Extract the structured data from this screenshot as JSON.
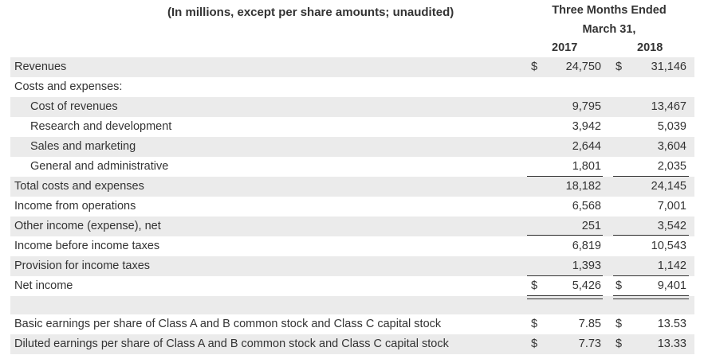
{
  "header": {
    "title": "(In millions, except per share amounts; unaudited)",
    "period_line1": "Three Months Ended",
    "period_line2": "March 31,",
    "year1": "2017",
    "year2": "2018"
  },
  "rows": [
    {
      "label": "Revenues",
      "indent": false,
      "cur1": "$",
      "v1": "24,750",
      "cur2": "$",
      "v2": "31,146"
    },
    {
      "label": "Costs and expenses:",
      "indent": false,
      "cur1": "",
      "v1": "",
      "cur2": "",
      "v2": ""
    },
    {
      "label": "Cost of revenues",
      "indent": true,
      "cur1": "",
      "v1": "9,795",
      "cur2": "",
      "v2": "13,467"
    },
    {
      "label": "Research and development",
      "indent": true,
      "cur1": "",
      "v1": "3,942",
      "cur2": "",
      "v2": "5,039"
    },
    {
      "label": "Sales and marketing",
      "indent": true,
      "cur1": "",
      "v1": "2,644",
      "cur2": "",
      "v2": "3,604"
    },
    {
      "label": "General and administrative",
      "indent": true,
      "cur1": "",
      "v1": "1,801",
      "cur2": "",
      "v2": "2,035"
    },
    {
      "label": "Total costs and expenses",
      "indent": false,
      "cur1": "",
      "v1": "18,182",
      "cur2": "",
      "v2": "24,145"
    },
    {
      "label": "Income from operations",
      "indent": false,
      "cur1": "",
      "v1": "6,568",
      "cur2": "",
      "v2": "7,001"
    },
    {
      "label": "Other income (expense), net",
      "indent": false,
      "cur1": "",
      "v1": "251",
      "cur2": "",
      "v2": "3,542"
    },
    {
      "label": "Income before income taxes",
      "indent": false,
      "cur1": "",
      "v1": "6,819",
      "cur2": "",
      "v2": "10,543"
    },
    {
      "label": "Provision for income taxes",
      "indent": false,
      "cur1": "",
      "v1": "1,393",
      "cur2": "",
      "v2": "1,142"
    },
    {
      "label": "Net income",
      "indent": false,
      "cur1": "$",
      "v1": "5,426",
      "cur2": "$",
      "v2": "9,401"
    }
  ],
  "eps_rows": [
    {
      "label": "Basic earnings per share of Class A and B common stock and Class C capital stock",
      "cur1": "$",
      "v1": "7.85",
      "cur2": "$",
      "v2": "13.53"
    },
    {
      "label": "Diluted earnings per share of Class A and B common stock and Class C capital stock",
      "cur1": "$",
      "v1": "7.73",
      "cur2": "$",
      "v2": "13.33"
    }
  ],
  "colors": {
    "shade": "#ebebeb",
    "text": "#333333"
  }
}
